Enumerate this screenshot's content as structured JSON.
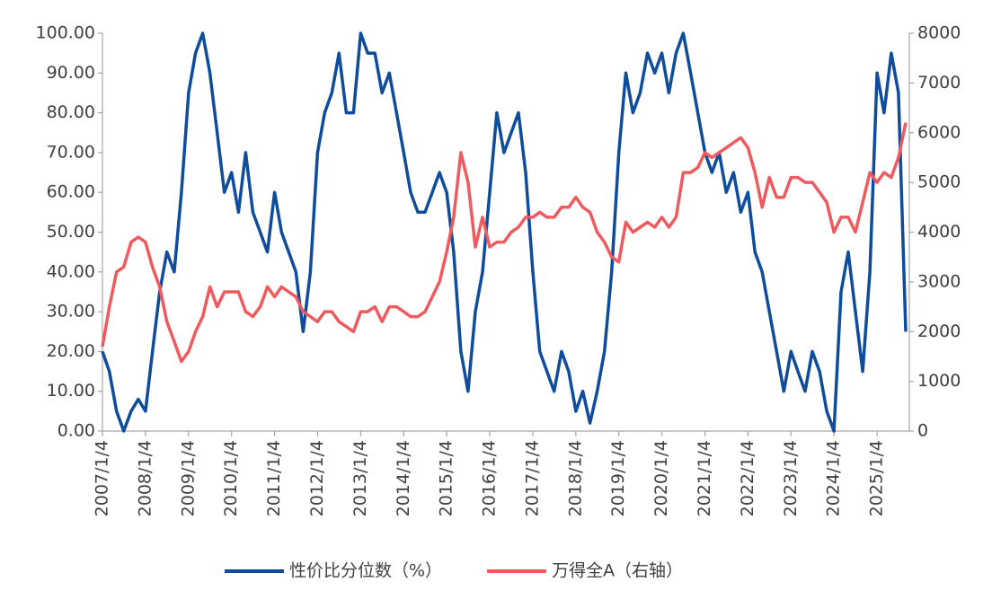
{
  "chart_data": {
    "type": "line",
    "x": [
      "2007/1/4",
      "2007/3/4",
      "2007/5/4",
      "2007/7/4",
      "2007/9/4",
      "2007/11/4",
      "2008/1/4",
      "2008/3/4",
      "2008/5/4",
      "2008/7/4",
      "2008/9/4",
      "2008/11/4",
      "2009/1/4",
      "2009/3/4",
      "2009/5/4",
      "2009/7/4",
      "2009/9/4",
      "2009/11/4",
      "2010/1/4",
      "2010/3/4",
      "2010/5/4",
      "2010/7/4",
      "2010/9/4",
      "2010/11/4",
      "2011/1/4",
      "2011/3/4",
      "2011/5/4",
      "2011/7/4",
      "2011/9/4",
      "2011/11/4",
      "2012/1/4",
      "2012/3/4",
      "2012/5/4",
      "2012/7/4",
      "2012/9/4",
      "2012/11/4",
      "2013/1/4",
      "2013/3/4",
      "2013/5/4",
      "2013/7/4",
      "2013/9/4",
      "2013/11/4",
      "2014/1/4",
      "2014/3/4",
      "2014/5/4",
      "2014/7/4",
      "2014/9/4",
      "2014/11/4",
      "2015/1/4",
      "2015/3/4",
      "2015/5/4",
      "2015/7/4",
      "2015/9/4",
      "2015/11/4",
      "2016/1/4",
      "2016/3/4",
      "2016/5/4",
      "2016/7/4",
      "2016/9/4",
      "2016/11/4",
      "2017/1/4",
      "2017/3/4",
      "2017/5/4",
      "2017/7/4",
      "2017/9/4",
      "2017/11/4",
      "2018/1/4",
      "2018/3/4",
      "2018/5/4",
      "2018/7/4",
      "2018/9/4",
      "2018/11/4",
      "2019/1/4",
      "2019/3/4",
      "2019/5/4",
      "2019/7/4",
      "2019/9/4",
      "2019/11/4",
      "2020/1/4",
      "2020/3/4",
      "2020/5/4",
      "2020/7/4",
      "2020/9/4",
      "2020/11/4",
      "2021/1/4",
      "2021/3/4",
      "2021/5/4",
      "2021/7/4",
      "2021/9/4",
      "2021/11/4",
      "2022/1/4",
      "2022/3/4",
      "2022/5/4",
      "2022/7/4",
      "2022/9/4",
      "2022/11/4",
      "2023/1/4",
      "2023/3/4",
      "2023/5/4",
      "2023/7/4",
      "2023/9/4",
      "2023/11/4",
      "2024/1/4",
      "2024/3/4",
      "2024/5/4",
      "2024/7/4",
      "2024/9/4",
      "2024/11/4",
      "2025/1/4",
      "2025/3/4",
      "2025/5/4",
      "2025/7/4",
      "2025/9/4"
    ],
    "xlim": [
      "2007/1/4",
      "2025/9/4"
    ],
    "xticks": [
      "2007/1/4",
      "2008/1/4",
      "2009/1/4",
      "2010/1/4",
      "2011/1/4",
      "2012/1/4",
      "2013/1/4",
      "2014/1/4",
      "2015/1/4",
      "2016/1/4",
      "2017/1/4",
      "2018/1/4",
      "2019/1/4",
      "2020/1/4",
      "2021/1/4",
      "2022/1/4",
      "2023/1/4",
      "2024/1/4",
      "2025/1/4"
    ],
    "ylim": [
      0,
      100
    ],
    "yticks": [
      {
        "value": 0,
        "label": "0.00"
      },
      {
        "value": 10,
        "label": "10.00"
      },
      {
        "value": 20,
        "label": "20.00"
      },
      {
        "value": 30,
        "label": "30.00"
      },
      {
        "value": 40,
        "label": "40.00"
      },
      {
        "value": 50,
        "label": "50.00"
      },
      {
        "value": 60,
        "label": "60.00"
      },
      {
        "value": 70,
        "label": "70.00"
      },
      {
        "value": 80,
        "label": "80.00"
      },
      {
        "value": 90,
        "label": "90.00"
      },
      {
        "value": 100,
        "label": "100.00"
      }
    ],
    "y2lim": [
      0,
      8000
    ],
    "y2ticks": [
      0,
      1000,
      2000,
      3000,
      4000,
      5000,
      6000,
      7000,
      8000
    ],
    "legend": "bottom",
    "series": [
      {
        "name": "性价比分位数（%）",
        "color": "#0f4c9c",
        "values": [
          20,
          15,
          5,
          0,
          5,
          8,
          5,
          20,
          35,
          45,
          40,
          60,
          85,
          95,
          100,
          90,
          75,
          60,
          65,
          55,
          70,
          55,
          50,
          45,
          60,
          50,
          45,
          40,
          25,
          40,
          70,
          80,
          85,
          95,
          80,
          80,
          100,
          95,
          95,
          85,
          90,
          80,
          70,
          60,
          55,
          55,
          60,
          65,
          60,
          45,
          20,
          10,
          30,
          40,
          60,
          80,
          70,
          75,
          80,
          65,
          40,
          20,
          15,
          10,
          20,
          15,
          5,
          10,
          2,
          10,
          20,
          40,
          70,
          90,
          80,
          85,
          95,
          90,
          95,
          85,
          95,
          100,
          90,
          80,
          70,
          65,
          70,
          60,
          65,
          55,
          60,
          45,
          40,
          30,
          20,
          10,
          20,
          15,
          10,
          20,
          15,
          5,
          0,
          35,
          45,
          30,
          15,
          40,
          90,
          80,
          95,
          85,
          25
        ]
      },
      {
        "name": "万得全A（右轴）",
        "color": "#ee5a5e",
        "axis": "y2",
        "values": [
          1700,
          2500,
          3200,
          3300,
          3800,
          3900,
          3800,
          3300,
          2900,
          2200,
          1800,
          1400,
          1600,
          2000,
          2300,
          2900,
          2500,
          2800,
          2800,
          2800,
          2400,
          2300,
          2500,
          2900,
          2700,
          2900,
          2800,
          2700,
          2400,
          2300,
          2200,
          2400,
          2400,
          2200,
          2100,
          2000,
          2400,
          2400,
          2500,
          2200,
          2500,
          2500,
          2400,
          2300,
          2300,
          2400,
          2700,
          3000,
          3600,
          4300,
          5600,
          5000,
          3700,
          4300,
          3700,
          3800,
          3800,
          4000,
          4100,
          4300,
          4300,
          4400,
          4300,
          4300,
          4500,
          4500,
          4700,
          4500,
          4400,
          4000,
          3800,
          3500,
          3400,
          4200,
          4000,
          4100,
          4200,
          4100,
          4300,
          4100,
          4300,
          5200,
          5200,
          5300,
          5600,
          5500,
          5600,
          5700,
          5800,
          5900,
          5700,
          5200,
          4500,
          5100,
          4700,
          4700,
          5100,
          5100,
          5000,
          5000,
          4800,
          4600,
          4000,
          4300,
          4300,
          4000,
          4600,
          5200,
          5000,
          5200,
          5100,
          5500,
          6200
        ]
      }
    ]
  }
}
